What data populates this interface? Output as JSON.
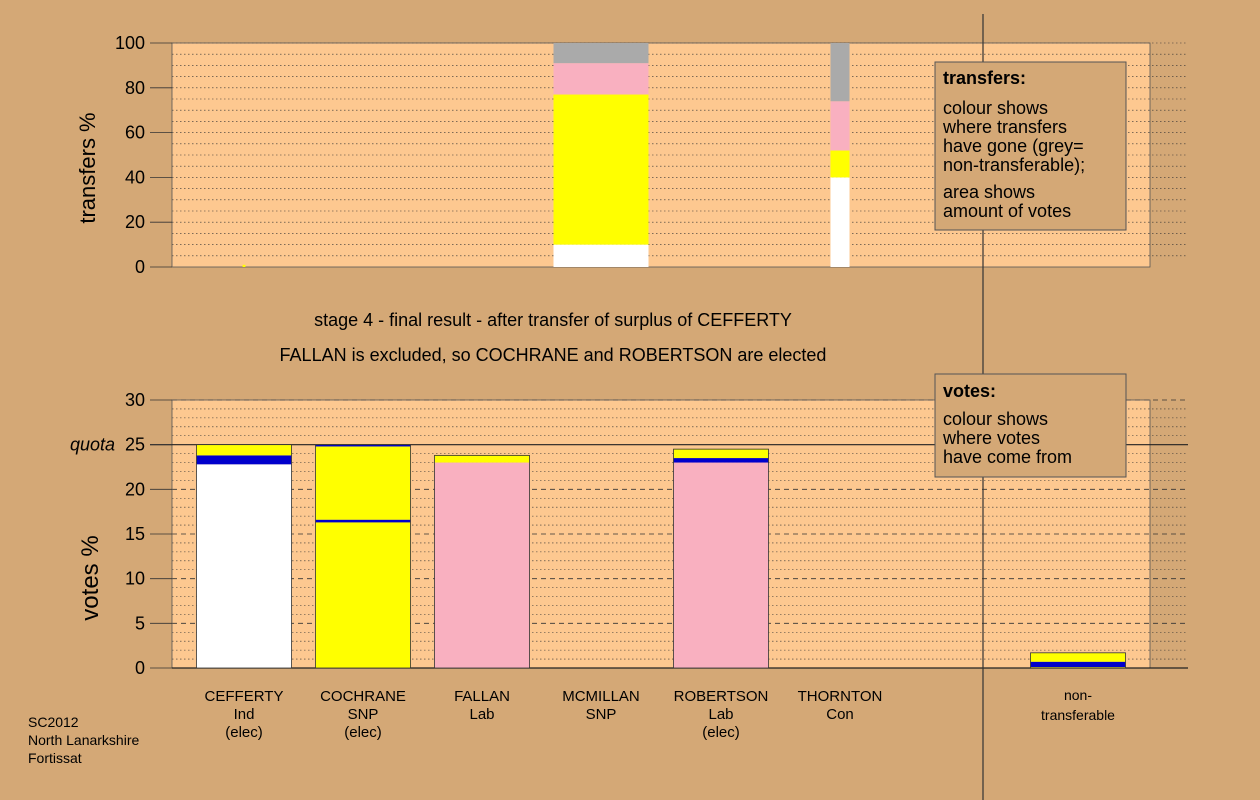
{
  "colors": {
    "background": "#d4a876",
    "plot_area": "#fdc890",
    "white": "#ffffff",
    "yellow": "#ffff00",
    "blue": "#0000cc",
    "pink": "#f9b0c0",
    "grey": "#aaaaaa"
  },
  "heading": {
    "line1": "stage 4 - final result - after transfer of surplus of CEFFERTY",
    "line2": "FALLAN is excluded, so COCHRANE and ROBERTSON are elected"
  },
  "footer": {
    "line1": "SC2012",
    "line2": "North Lanarkshire",
    "line3": "Fortissat"
  },
  "transfers_legend": {
    "title": "transfers:",
    "line1": "colour shows",
    "line2": "where transfers",
    "line3": "have gone (grey=",
    "line4": "non-transferable);",
    "line5": "area shows",
    "line6": "amount of votes"
  },
  "votes_legend": {
    "title": "votes:",
    "line1": "colour shows",
    "line2": "where votes",
    "line3": "have come from"
  },
  "chart_data": [
    {
      "type": "bar",
      "title": "",
      "ylabel": "transfers %",
      "ylim": [
        0,
        100
      ],
      "yticks": [
        0,
        20,
        40,
        60,
        80,
        100
      ],
      "grid": true,
      "note": "Transfer stacks shown as percentage composition; bar width shows amount of votes transferred",
      "columns": [
        {
          "slot": "CEFFERTY",
          "relative_width": 0.03,
          "segments": [
            {
              "color_key": "yellow",
              "from": 0,
              "to": 1
            }
          ]
        },
        {
          "slot": "MCMILLAN",
          "relative_width": 1.0,
          "segments": [
            {
              "color_key": "white",
              "from": 0,
              "to": 10
            },
            {
              "color_key": "yellow",
              "from": 10,
              "to": 77
            },
            {
              "color_key": "pink",
              "from": 77,
              "to": 91
            },
            {
              "color_key": "grey",
              "from": 91,
              "to": 100
            }
          ]
        },
        {
          "slot": "THORNTON",
          "relative_width": 0.2,
          "segments": [
            {
              "color_key": "white",
              "from": 0,
              "to": 40
            },
            {
              "color_key": "yellow",
              "from": 40,
              "to": 52
            },
            {
              "color_key": "pink",
              "from": 52,
              "to": 74
            },
            {
              "color_key": "grey",
              "from": 74,
              "to": 100
            }
          ]
        }
      ]
    },
    {
      "type": "bar",
      "title": "",
      "ylabel": "votes %",
      "ylim": [
        0,
        30
      ],
      "yticks": [
        0,
        5,
        10,
        15,
        20,
        25,
        30
      ],
      "quota": 25,
      "quota_label": "quota",
      "grid": true,
      "categories": [
        {
          "name": "CEFFERTY",
          "party": "Ind",
          "status": "(elec)"
        },
        {
          "name": "COCHRANE",
          "party": "SNP",
          "status": "(elec)"
        },
        {
          "name": "FALLAN",
          "party": "Lab",
          "status": ""
        },
        {
          "name": "MCMILLAN",
          "party": "SNP",
          "status": ""
        },
        {
          "name": "ROBERTSON",
          "party": "Lab",
          "status": "(elec)"
        },
        {
          "name": "THORNTON",
          "party": "Con",
          "status": ""
        }
      ],
      "nontransferable_label_line1": "non-",
      "nontransferable_label_line2": "transferable",
      "stacks": [
        [
          {
            "color_key": "white",
            "from": 0,
            "to": 22.8
          },
          {
            "color_key": "blue",
            "from": 22.8,
            "to": 23.8
          },
          {
            "color_key": "yellow",
            "from": 23.8,
            "to": 25
          }
        ],
        [
          {
            "color_key": "yellow",
            "from": 0,
            "to": 16.3
          },
          {
            "color_key": "blue",
            "from": 16.3,
            "to": 16.6
          },
          {
            "color_key": "yellow",
            "from": 16.6,
            "to": 24.8
          },
          {
            "color_key": "blue",
            "from": 24.8,
            "to": 25
          }
        ],
        [
          {
            "color_key": "pink",
            "from": 0,
            "to": 23.0
          },
          {
            "color_key": "yellow",
            "from": 23.0,
            "to": 23.8
          }
        ],
        [],
        [
          {
            "color_key": "pink",
            "from": 0,
            "to": 23.0
          },
          {
            "color_key": "blue",
            "from": 23.0,
            "to": 23.5
          },
          {
            "color_key": "yellow",
            "from": 23.5,
            "to": 24.5
          }
        ],
        []
      ],
      "nontransferable_stack": [
        {
          "color_key": "yellow",
          "from": 0,
          "to": 0.1
        },
        {
          "color_key": "blue",
          "from": 0.1,
          "to": 0.7
        },
        {
          "color_key": "yellow",
          "from": 0.7,
          "to": 1.7
        }
      ]
    }
  ]
}
